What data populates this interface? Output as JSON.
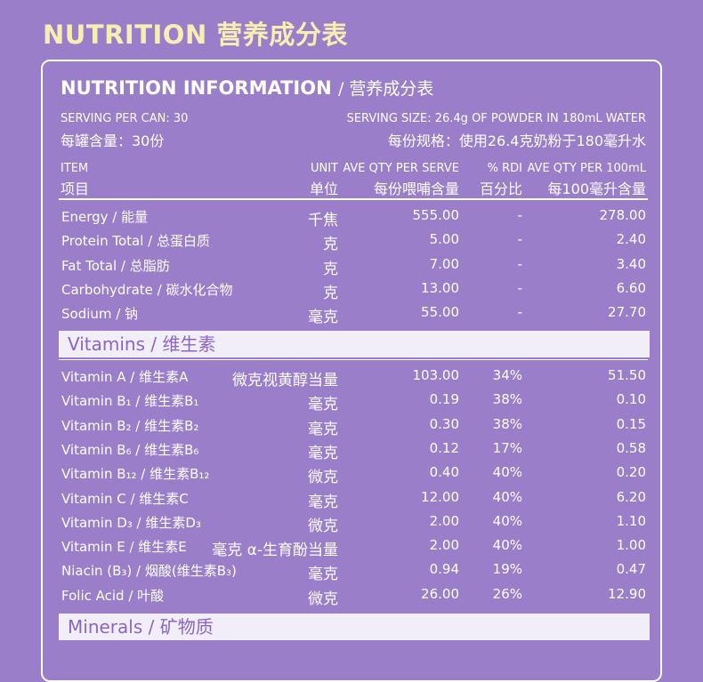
{
  "title": "NUTRITION 营养成分表",
  "info": {
    "title_en": "NUTRITION INFORMATION",
    "title_cn": "/ 营养成分表",
    "serving_per_can_en": "SERVING PER CAN: 30",
    "serving_per_can_cn": "每罐含量：30份",
    "serving_size_en": "SERVING SIZE: 26.4g OF POWDER IN 180mL WATER",
    "serving_size_cn": "每份规格：使用26.4克奶粉于180毫升水"
  },
  "headers": {
    "item_en": "ITEM",
    "item_cn": "项目",
    "unit_en": "UNIT",
    "unit_cn": "单位",
    "serve_en": "AVE QTY PER SERVE",
    "serve_cn": "每份喂哺含量",
    "rdi_en": "% RDI",
    "rdi_cn": "百分比",
    "per100_en": "AVE QTY PER 100mL",
    "per100_cn": "每100毫升含量"
  },
  "basic": [
    {
      "name": "Energy / 能量",
      "unit": "千焦",
      "serve": "555.00",
      "rdi": "-",
      "per100": "278.00"
    },
    {
      "name": "Protein Total / 总蛋白质",
      "unit": "克",
      "serve": "5.00",
      "rdi": "-",
      "per100": "2.40"
    },
    {
      "name": "Fat Total / 总脂肪",
      "unit": "克",
      "serve": "7.00",
      "rdi": "-",
      "per100": "3.40"
    },
    {
      "name": "Carbohydrate / 碳水化合物",
      "unit": "克",
      "serve": "13.00",
      "rdi": "-",
      "per100": "6.60"
    },
    {
      "name": "Sodium / 钠",
      "unit": "毫克",
      "serve": "55.00",
      "rdi": "-",
      "per100": "27.70"
    }
  ],
  "vitamins_label": "Vitamins / 维生素",
  "vitamins": [
    {
      "name": "Vitamin A / 维生素A",
      "unit": "微克视黄醇当量",
      "serve": "103.00",
      "rdi": "34%",
      "per100": "51.50"
    },
    {
      "name": "Vitamin B₁ / 维生素B₁",
      "unit": "毫克",
      "serve": "0.19",
      "rdi": "38%",
      "per100": "0.10"
    },
    {
      "name": "Vitamin B₂ / 维生素B₂",
      "unit": "毫克",
      "serve": "0.30",
      "rdi": "38%",
      "per100": "0.15"
    },
    {
      "name": "Vitamin B₆ / 维生素B₆",
      "unit": "毫克",
      "serve": "0.12",
      "rdi": "17%",
      "per100": "0.58"
    },
    {
      "name": "Vitamin B₁₂ / 维生素B₁₂",
      "unit": "微克",
      "serve": "0.40",
      "rdi": "40%",
      "per100": "0.20"
    },
    {
      "name": "Vitamin C / 维生素C",
      "unit": "毫克",
      "serve": "12.00",
      "rdi": "40%",
      "per100": "6.20"
    },
    {
      "name": "Vitamin D₃ / 维生素D₃",
      "unit": "微克",
      "serve": "2.00",
      "rdi": "40%",
      "per100": "1.10"
    },
    {
      "name": "Vitamin E / 维生素E",
      "unit": "毫克 α-生育酚当量",
      "serve": "2.00",
      "rdi": "40%",
      "per100": "1.00"
    },
    {
      "name": "Niacin (B₃) / 烟酸(维生素B₃)",
      "unit": "毫克",
      "serve": "0.94",
      "rdi": "19%",
      "per100": "0.47"
    },
    {
      "name": "Folic Acid / 叶酸",
      "unit": "微克",
      "serve": "26.00",
      "rdi": "26%",
      "per100": "12.90"
    }
  ],
  "minerals_label": "Minerals / 矿物质",
  "colors": {
    "background": "#9a7ec9",
    "title": "#f7eeb4",
    "band_text": "#8a65c6"
  }
}
